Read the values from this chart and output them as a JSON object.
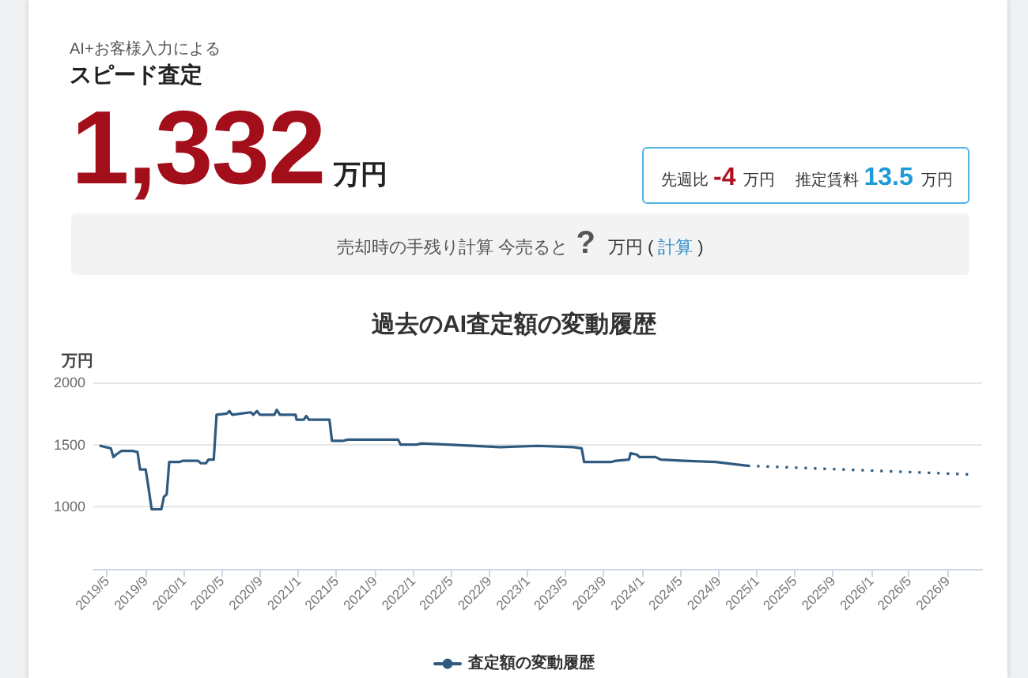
{
  "chart_data": [
    {
      "type": "other",
      "subtitle": "AI+お客様入力による",
      "title": "スピード査定",
      "annotations": [
        "1,332",
        "万円",
        "先週比",
        "-4",
        "万円",
        "推定賃料",
        "13.5",
        "万円",
        "売却時の手残り計算 今売ると",
        "?",
        "万円 (",
        "計算",
        ")"
      ]
    },
    {
      "type": "line",
      "title": "過去のAI査定額の変動履歴",
      "ylabel": "万円",
      "xlim": [
        "2019-03-19",
        "2026-12-21"
      ],
      "xticks": [
        {
          "value": "2019-05",
          "label": "2019/5"
        },
        {
          "value": "2019-09",
          "label": "2019/9"
        },
        {
          "value": "2020-01",
          "label": "2020/1"
        },
        {
          "value": "2020-05",
          "label": "2020/5"
        },
        {
          "value": "2020-09",
          "label": "2020/9"
        },
        {
          "value": "2021-01",
          "label": "2021/1"
        },
        {
          "value": "2021-05",
          "label": "2021/5"
        },
        {
          "value": "2021-09",
          "label": "2021/9"
        },
        {
          "value": "2022-01",
          "label": "2022/1"
        },
        {
          "value": "2022-05",
          "label": "2022/5"
        },
        {
          "value": "2022-09",
          "label": "2022/9"
        },
        {
          "value": "2023-01",
          "label": "2023/1"
        },
        {
          "value": "2023-05",
          "label": "2023/5"
        },
        {
          "value": "2023-09",
          "label": "2023/9"
        },
        {
          "value": "2024-01",
          "label": "2024/1"
        },
        {
          "value": "2024-05",
          "label": "2024/5"
        },
        {
          "value": "2024-09",
          "label": "2024/9"
        },
        {
          "value": "2025-01",
          "label": "2025/1"
        },
        {
          "value": "2025-05",
          "label": "2025/5"
        },
        {
          "value": "2025-09",
          "label": "2025/9"
        },
        {
          "value": "2026-01",
          "label": "2026/1"
        },
        {
          "value": "2026-05",
          "label": "2026/5"
        },
        {
          "value": "2026-09",
          "label": "2026/9"
        }
      ],
      "ylim": [
        500,
        2000
      ],
      "yticks": [
        1000,
        1500,
        2000
      ],
      "grid": "y",
      "legend": "bottom",
      "marker": "none",
      "line_style": "solid",
      "series": [
        {
          "name": "査定額の変動履歴",
          "color": "#2e5a80",
          "x": [
            "2019-04-11",
            "2019-05-14",
            "2019-05-22",
            "2019-05-31",
            "2019-06-17",
            "2019-07-04",
            "2019-07-21",
            "2019-08-07",
            "2019-08-15",
            "2019-09-02",
            "2019-09-10",
            "2019-09-21",
            "2019-10-22",
            "2019-10-30",
            "2019-11-08",
            "2019-11-16",
            "2019-12-19",
            "2019-12-28",
            "2020-02-16",
            "2020-02-25",
            "2020-03-12",
            "2020-03-20",
            "2020-04-06",
            "2020-04-15",
            "2020-05-18",
            "2020-05-26",
            "2020-06-04",
            "2020-08-02",
            "2020-08-10",
            "2020-08-22",
            "2020-08-31",
            "2020-10-16",
            "2020-10-24",
            "2020-11-03",
            "2020-12-23",
            "2020-12-26",
            "2021-01-18",
            "2021-01-26",
            "2021-02-04",
            "2021-04-10",
            "2021-04-18",
            "2021-05-21",
            "2021-06-08",
            "2021-08-31",
            "2021-11-15",
            "2021-11-23",
            "2022-01-12",
            "2022-01-29",
            "2022-04-22",
            "2022-10-07",
            "2023-02-02",
            "2023-05-28",
            "2023-06-23",
            "2023-07-01",
            "2023-09-24",
            "2023-10-10",
            "2023-11-21",
            "2023-11-26",
            "2023-12-16",
            "2023-12-24",
            "2024-02-13",
            "2024-03-01",
            "2024-05-15",
            "2024-08-24",
            "2024-10-31",
            "2024-12-03"
          ],
          "values": [
            1490,
            1470,
            1400,
            1420,
            1450,
            1450,
            1450,
            1440,
            1300,
            1300,
            1170,
            980,
            980,
            1080,
            1100,
            1360,
            1360,
            1370,
            1370,
            1350,
            1350,
            1380,
            1380,
            1740,
            1750,
            1770,
            1740,
            1760,
            1740,
            1770,
            1740,
            1740,
            1780,
            1740,
            1740,
            1700,
            1700,
            1730,
            1700,
            1700,
            1530,
            1530,
            1540,
            1540,
            1540,
            1500,
            1500,
            1510,
            1500,
            1480,
            1490,
            1480,
            1470,
            1360,
            1360,
            1370,
            1380,
            1430,
            1420,
            1400,
            1400,
            1380,
            1370,
            1360,
            1340,
            1330
          ]
        },
        {
          "color": "#2e5a80",
          "line_style": "dotted",
          "x": [
            "2024-12-03",
            "2026-11-15"
          ],
          "values": [
            1330,
            1260
          ]
        }
      ]
    }
  ]
}
